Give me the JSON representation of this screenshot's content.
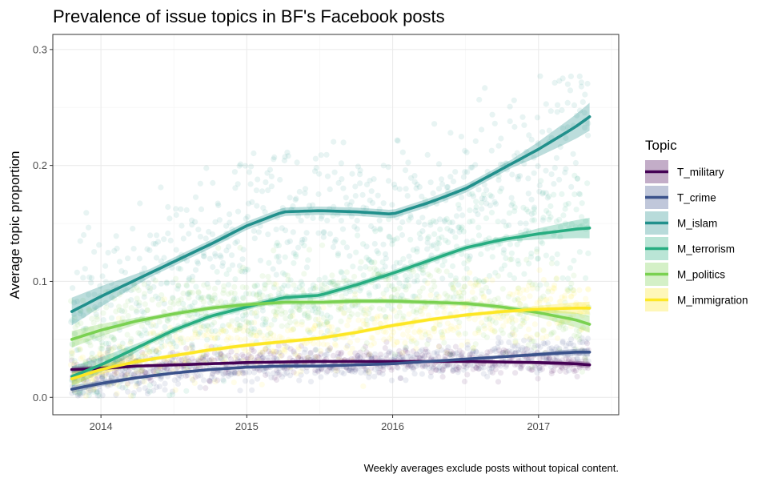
{
  "chart_data": {
    "type": "scatter",
    "title": "Prevalence of issue topics in BF's Facebook posts",
    "xlabel": "",
    "ylabel": "Average topic proportion",
    "caption": "Weekly averages exclude posts without topical content.",
    "x_tick_labels": [
      "2014",
      "2015",
      "2016",
      "2017"
    ],
    "x_ticks": [
      2014,
      2015,
      2016,
      2017
    ],
    "xlim": [
      2013.67,
      2017.55
    ],
    "y_tick_labels": [
      "0.0",
      "0.1",
      "0.2",
      "0.3"
    ],
    "y_ticks": [
      0.0,
      0.1,
      0.2,
      0.3
    ],
    "ylim": [
      -0.015,
      0.313
    ],
    "grid": true,
    "legend_title": "Topic",
    "legend_position": "right",
    "smooth_x": [
      2013.8,
      2014.0,
      2014.25,
      2014.5,
      2014.75,
      2015.0,
      2015.25,
      2015.5,
      2015.75,
      2016.0,
      2016.25,
      2016.5,
      2016.75,
      2017.0,
      2017.25,
      2017.35
    ],
    "series": [
      {
        "name": "T_military",
        "color": "#440154",
        "smooth": [
          0.024,
          0.025,
          0.027,
          0.028,
          0.029,
          0.03,
          0.0305,
          0.031,
          0.031,
          0.031,
          0.031,
          0.031,
          0.0305,
          0.03,
          0.029,
          0.028
        ],
        "noise": 0.007,
        "point_spread": 0.006
      },
      {
        "name": "T_crime",
        "color": "#3B528B",
        "smooth": [
          0.007,
          0.012,
          0.017,
          0.021,
          0.024,
          0.026,
          0.027,
          0.027,
          0.028,
          0.029,
          0.031,
          0.033,
          0.035,
          0.037,
          0.039,
          0.039
        ],
        "noise": 0.008,
        "point_spread": 0.007
      },
      {
        "name": "M_islam",
        "color": "#21908C",
        "smooth": [
          0.074,
          0.087,
          0.102,
          0.117,
          0.132,
          0.148,
          0.16,
          0.161,
          0.16,
          0.158,
          0.168,
          0.18,
          0.197,
          0.214,
          0.233,
          0.242
        ],
        "noise": 0.03,
        "point_spread": 0.03
      },
      {
        "name": "M_terrorism",
        "color": "#27AD81",
        "smooth": [
          0.018,
          0.028,
          0.043,
          0.058,
          0.07,
          0.078,
          0.086,
          0.088,
          0.097,
          0.107,
          0.118,
          0.129,
          0.136,
          0.141,
          0.145,
          0.146
        ],
        "noise": 0.022,
        "point_spread": 0.022
      },
      {
        "name": "M_politics",
        "color": "#7AD151",
        "smooth": [
          0.05,
          0.058,
          0.066,
          0.072,
          0.077,
          0.08,
          0.082,
          0.082,
          0.083,
          0.083,
          0.082,
          0.081,
          0.078,
          0.073,
          0.067,
          0.063
        ],
        "noise": 0.018,
        "point_spread": 0.018
      },
      {
        "name": "M_immigration",
        "color": "#FDE725",
        "smooth": [
          0.016,
          0.024,
          0.031,
          0.036,
          0.041,
          0.045,
          0.048,
          0.051,
          0.056,
          0.062,
          0.067,
          0.071,
          0.074,
          0.076,
          0.077,
          0.077
        ],
        "noise": 0.014,
        "point_spread": 0.014
      }
    ]
  }
}
